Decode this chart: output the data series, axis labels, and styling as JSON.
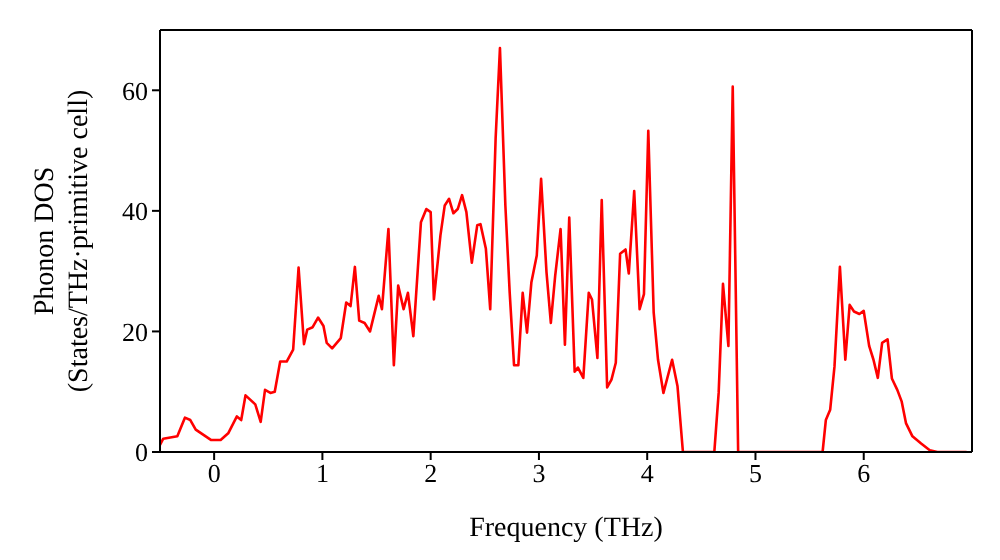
{
  "chart_data": {
    "type": "line",
    "xlabel": "Frequency (THz)",
    "ylabel": "Phonon DOS\n(States/THz·primitive cell)",
    "xlim": [
      -0.5,
      7
    ],
    "xticks": [
      0,
      1,
      2,
      3,
      4,
      5,
      6
    ],
    "ylim": [
      0,
      70
    ],
    "yticks": [
      0,
      20,
      40,
      60
    ],
    "grid": false,
    "legend": false,
    "marker": "none",
    "line_style": "solid",
    "series": [
      {
        "color": "#ff0000",
        "x": [
          -0.5,
          -0.47,
          -0.34,
          -0.27,
          -0.22,
          -0.17,
          -0.03,
          0.06,
          0.13,
          0.21,
          0.25,
          0.29,
          0.38,
          0.43,
          0.47,
          0.52,
          0.56,
          0.61,
          0.67,
          0.73,
          0.78,
          0.83,
          0.86,
          0.91,
          0.96,
          1.01,
          1.04,
          1.09,
          1.17,
          1.22,
          1.26,
          1.3,
          1.34,
          1.39,
          1.44,
          1.52,
          1.55,
          1.61,
          1.66,
          1.7,
          1.75,
          1.79,
          1.84,
          1.91,
          1.96,
          2.0,
          2.03,
          2.09,
          2.13,
          2.17,
          2.21,
          2.25,
          2.29,
          2.33,
          2.38,
          2.43,
          2.46,
          2.51,
          2.55,
          2.6,
          2.64,
          2.69,
          2.73,
          2.77,
          2.81,
          2.85,
          2.89,
          2.93,
          2.98,
          3.02,
          3.07,
          3.11,
          3.15,
          3.2,
          3.24,
          3.28,
          3.33,
          3.36,
          3.41,
          3.46,
          3.49,
          3.54,
          3.58,
          3.63,
          3.67,
          3.71,
          3.75,
          3.8,
          3.83,
          3.88,
          3.93,
          3.97,
          4.01,
          4.06,
          4.1,
          4.15,
          4.23,
          4.28,
          4.33,
          4.62,
          4.66,
          4.7,
          4.75,
          4.79,
          4.84,
          5.62,
          5.65,
          5.69,
          5.73,
          5.78,
          5.83,
          5.87,
          5.91,
          5.96,
          6.0,
          6.05,
          6.09,
          6.13,
          6.17,
          6.22,
          6.26,
          6.31,
          6.35,
          6.39,
          6.45,
          6.53,
          6.61,
          6.68,
          6.95
        ],
        "values": [
          1.2,
          2.2,
          2.6,
          5.7,
          5.3,
          3.7,
          2,
          2,
          3.1,
          5.9,
          5.3,
          9.4,
          7.9,
          5,
          10.3,
          9.8,
          10,
          15,
          15,
          17,
          30.6,
          17.9,
          20.3,
          20.7,
          22.3,
          20.9,
          18.1,
          17.2,
          18.9,
          24.8,
          24.2,
          30.7,
          21.8,
          21.4,
          20,
          25.9,
          23.7,
          37,
          14.4,
          27.6,
          23.7,
          26.4,
          19.2,
          38.1,
          40.3,
          39.8,
          25.3,
          35.9,
          40.9,
          42,
          39.6,
          40.3,
          42.6,
          39.8,
          31.4,
          37.6,
          37.8,
          33.7,
          23.7,
          52,
          67,
          40.9,
          26.4,
          14.4,
          14.4,
          26.4,
          19.8,
          28.1,
          32.6,
          45.3,
          29.8,
          21.4,
          29.2,
          37,
          17.8,
          38.9,
          13.3,
          14,
          12.3,
          26.4,
          25.3,
          15.6,
          41.8,
          10.7,
          12,
          14.8,
          32.9,
          33.6,
          29.6,
          43.3,
          23.7,
          26.2,
          53.3,
          23.1,
          15.3,
          9.8,
          15.3,
          10.9,
          0,
          0,
          9.8,
          27.9,
          17.6,
          60.6,
          0,
          0,
          5.3,
          7,
          14.2,
          30.7,
          15.3,
          24.4,
          23.3,
          22.9,
          23.4,
          17.6,
          15.3,
          12.3,
          18.1,
          18.7,
          12.2,
          10.3,
          8.4,
          4.8,
          2.6,
          1.4,
          0.3,
          0,
          0
        ]
      }
    ]
  }
}
